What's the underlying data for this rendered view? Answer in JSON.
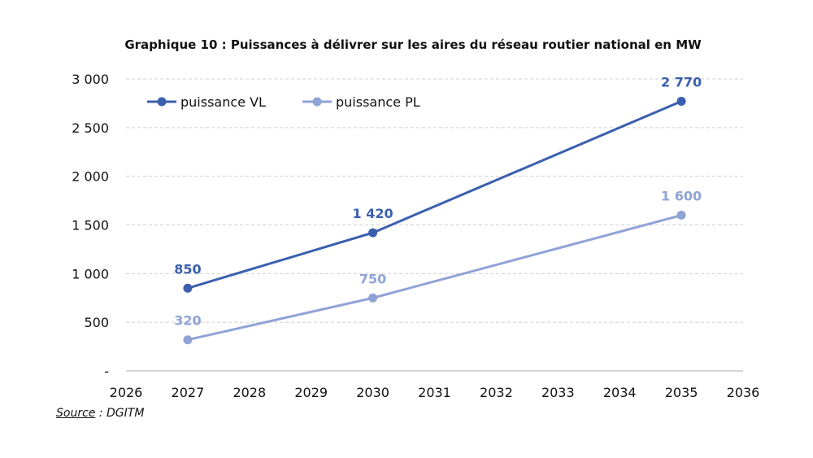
{
  "chart_data": {
    "type": "line",
    "title": "Graphique 10 : Puissances à délivrer sur les aires du réseau routier national en MW",
    "xlabel": "",
    "ylabel": "",
    "xlim": [
      2026,
      2036
    ],
    "ylim": [
      0,
      3000
    ],
    "x_ticks": [
      "2026",
      "2027",
      "2028",
      "2029",
      "2030",
      "2031",
      "2032",
      "2033",
      "2034",
      "2035",
      "2036"
    ],
    "y_ticks": [
      {
        "value": 0,
        "label": "-"
      },
      {
        "value": 500,
        "label": "500"
      },
      {
        "value": 1000,
        "label": "1 000"
      },
      {
        "value": 1500,
        "label": "1 500"
      },
      {
        "value": 2000,
        "label": "2 000"
      },
      {
        "value": 2500,
        "label": "2 500"
      },
      {
        "value": 3000,
        "label": "3 000"
      }
    ],
    "grid": "horizontal dashed",
    "legend_position": "top-left",
    "series": [
      {
        "name": "puissance VL",
        "color": "#3a5fae",
        "points": [
          {
            "x": 2027,
            "y": 850,
            "label": "850"
          },
          {
            "x": 2030,
            "y": 1420,
            "label": "1 420"
          },
          {
            "x": 2035,
            "y": 2770,
            "label": "2 770"
          }
        ]
      },
      {
        "name": "puissance PL",
        "color": "#8fa3d6",
        "points": [
          {
            "x": 2027,
            "y": 320,
            "label": "320"
          },
          {
            "x": 2030,
            "y": 750,
            "label": "750"
          },
          {
            "x": 2035,
            "y": 1600,
            "label": "1 600"
          }
        ]
      }
    ]
  },
  "source": {
    "label": "Source",
    "separator": " : ",
    "value": "DGITM"
  }
}
